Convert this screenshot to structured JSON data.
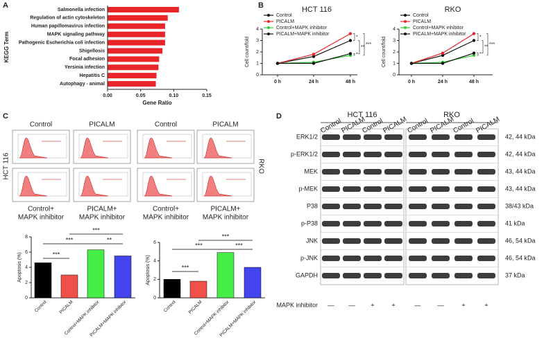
{
  "panel_labels": [
    "A",
    "B",
    "C",
    "D"
  ],
  "chart_data": [
    {
      "type": "barh",
      "ylabel": "KEGG Term",
      "xlabel": "Gene Ratio",
      "color": "#e8262a",
      "categories": [
        "Salmonella infection",
        "Regulation of actin cytoskeleton",
        "Human papillomavirus infection",
        "MAPK signaling pathway",
        "Pathogenic Escherichia coli infection",
        "Shigellosis",
        "Focal adhesion",
        "Yersinia infection",
        "Hepatitis C",
        "Autophagy - animal"
      ],
      "values": [
        0.108,
        0.091,
        0.087,
        0.087,
        0.087,
        0.083,
        0.078,
        0.077,
        0.074,
        0.073
      ],
      "xlim": [
        0,
        0.15
      ],
      "xticks": [
        {
          "value": 0,
          "label": "0.00"
        },
        {
          "value": 0.05,
          "label": "0.05"
        },
        {
          "value": 0.1,
          "label": "0.10"
        },
        {
          "value": 0.15,
          "label": "0.15"
        }
      ]
    },
    {
      "type": "line",
      "title": "HCT 116",
      "ylabel": "Cell count/fold",
      "categories": [
        "0 h",
        "24 h",
        "48 h"
      ],
      "ylim": [
        0,
        4
      ],
      "yticks": [
        0,
        1,
        2,
        3,
        4
      ],
      "series": [
        {
          "name": "Control",
          "color": "#111111",
          "values": [
            1,
            1.6,
            3.0
          ]
        },
        {
          "name": "PICALM",
          "color": "#e8262a",
          "values": [
            1,
            1.8,
            3.6
          ]
        },
        {
          "name": "Control+MAPK inhibitor",
          "color": "#33cc33",
          "values": [
            1,
            1.1,
            1.7
          ]
        },
        {
          "name": "PICALM+MAPK inhibitor",
          "color": "#111111",
          "values": [
            1,
            1.0,
            1.85
          ]
        }
      ],
      "annotations": [
        "*",
        "***",
        "**",
        "*"
      ]
    },
    {
      "type": "line",
      "title": "RKO",
      "ylabel": "Cell count/fold",
      "categories": [
        "0 h",
        "24 h",
        "48 h"
      ],
      "ylim": [
        0,
        4
      ],
      "yticks": [
        0,
        1,
        2,
        3,
        4
      ],
      "series": [
        {
          "name": "Control",
          "color": "#111111",
          "values": [
            1,
            1.7,
            3.0
          ]
        },
        {
          "name": "PICALM",
          "color": "#e8262a",
          "values": [
            1,
            1.9,
            3.6
          ]
        },
        {
          "name": "Control+MAPK inhibitor",
          "color": "#33cc33",
          "values": [
            1,
            1.1,
            1.7
          ]
        },
        {
          "name": "PICALM+MAPK inhibitor",
          "color": "#111111",
          "values": [
            1,
            1.0,
            1.9
          ]
        }
      ],
      "annotations": [
        "*",
        "***",
        "**",
        "*"
      ]
    },
    {
      "type": "bar",
      "ylabel": "Apoptosis (%)",
      "categories": [
        "Control",
        "PICALM",
        "Control+MAPK inhibitor",
        "PICALM+MAPK inhibitor"
      ],
      "values": [
        4.6,
        3.0,
        6.3,
        5.5
      ],
      "colors": [
        "#000000",
        "#f0504a",
        "#44ee44",
        "#4444ee"
      ],
      "ylim": [
        0,
        8
      ],
      "yticks": [
        0,
        2,
        4,
        6,
        8
      ],
      "annotations": [
        "***",
        "***",
        "**",
        "***"
      ]
    },
    {
      "type": "bar",
      "ylabel": "Apoptosis (%)",
      "categories": [
        "Control",
        "PICALM",
        "Control+MAPK inhibitor",
        "PICALM+MAPK inhibitor"
      ],
      "values": [
        2.0,
        1.8,
        4.9,
        3.3
      ],
      "colors": [
        "#000000",
        "#f0504a",
        "#44ee44",
        "#4444ee"
      ],
      "ylim": [
        0,
        6
      ],
      "yticks": [
        0,
        2,
        4,
        6
      ],
      "annotations": [
        "***",
        "***",
        "***",
        "***"
      ]
    }
  ],
  "flow": {
    "rows": [
      "HCT 116",
      "RKO"
    ],
    "top_labels": [
      "Control",
      "PICALM",
      "Control",
      "PICALM"
    ],
    "bottom_labels": [
      [
        "Control+",
        "MAPK inhibitor"
      ],
      [
        "PICALM+",
        "MAPK inhibitor"
      ],
      [
        "Control+",
        "MAPK inhibitor"
      ],
      [
        "PICALM+",
        "MAPK inhibitor"
      ]
    ]
  },
  "western": {
    "cell_lines": [
      "HCT 116",
      "RKO"
    ],
    "lanes": [
      "Control",
      "PICALM",
      "Control",
      "PICALM",
      "Control",
      "PICALM",
      "Control",
      "PICALM"
    ],
    "proteins": [
      {
        "name": "ERK1/2",
        "size": "42, 44 kDa"
      },
      {
        "name": "p-ERK1/2",
        "size": "42, 44 kDa"
      },
      {
        "name": "MEK",
        "size": "43, 44 kDa"
      },
      {
        "name": "p-MEK",
        "size": "43, 44 kDa"
      },
      {
        "name": "P38",
        "size": "38/43 kDa"
      },
      {
        "name": "p-P38",
        "size": "41 kDa"
      },
      {
        "name": "JNK",
        "size": "46, 54 kDa"
      },
      {
        "name": "p-JNK",
        "size": "46, 54 kDa"
      },
      {
        "name": "GAPDH",
        "size": "37 kDa"
      }
    ],
    "treatment": {
      "label": "MAPK inhibitor",
      "signs": [
        "—",
        "—",
        "+",
        "+",
        "—",
        "—",
        "+",
        "+"
      ]
    }
  }
}
